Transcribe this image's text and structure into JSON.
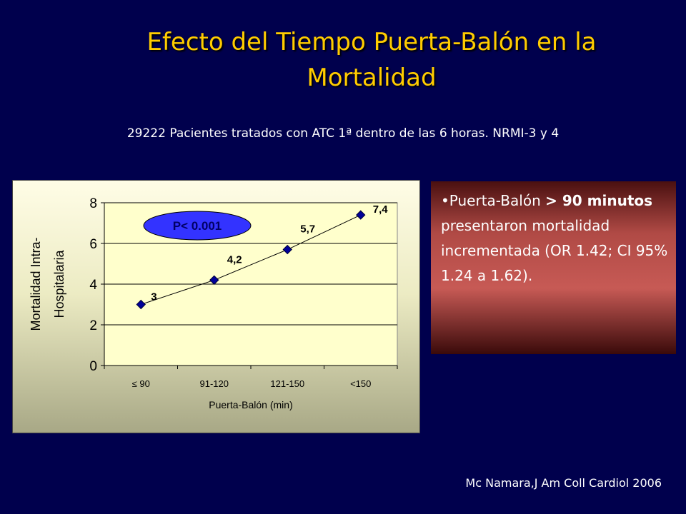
{
  "slide": {
    "title_line1": "Efecto del Tiempo Puerta-Balón en la",
    "title_line2": "Mortalidad",
    "subtitle": "29222 Pacientes tratados con ATC 1ª dentro de las 6 horas. NRMI-3 y 4",
    "citation": "Mc Namara,J Am Coll Cardiol 2006"
  },
  "callout": {
    "bullet": "•",
    "text_before": "Puerta-Balón ",
    "text_bold": "> 90 minutos",
    "text_after": " presentaron mortalidad incrementada (OR 1.42; CI 95% 1.24 a 1.62)."
  },
  "chart_data": {
    "type": "line",
    "categories": [
      "≤ 90",
      "91-120",
      "121-150",
      "<150"
    ],
    "values": [
      3,
      4.2,
      5.7,
      7.4
    ],
    "data_labels": [
      "3",
      "4,2",
      "5,7",
      "7,4"
    ],
    "xlabel": "Puerta-Balón (min)",
    "ylabel_line1": "Mortalidad Intra-",
    "ylabel_line2": "Hospitalaria",
    "ylim": [
      0,
      8
    ],
    "yticks": [
      0,
      2,
      4,
      6,
      8
    ],
    "grid": true,
    "annotation": "P< 0.001",
    "colors": {
      "line": "#000000",
      "marker": "#000099",
      "annotation_fill": "#3333ff",
      "annotation_text": "#000066",
      "grid": "#000000",
      "plot_bg": "#ffffcc"
    }
  }
}
